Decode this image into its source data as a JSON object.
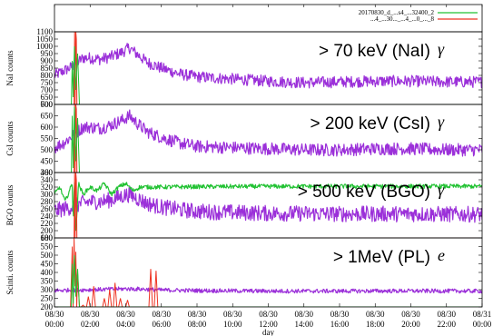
{
  "chart_data": {
    "type": "line",
    "xlabel": "day",
    "x_ticks": [
      {
        "hour": 0,
        "date": "08/30",
        "time": "00:00"
      },
      {
        "hour": 2,
        "date": "08/30",
        "time": "02:00"
      },
      {
        "hour": 4,
        "date": "08/30",
        "time": "04:00"
      },
      {
        "hour": 6,
        "date": "08/30",
        "time": "06:00"
      },
      {
        "hour": 8,
        "date": "08/30",
        "time": "08:00"
      },
      {
        "hour": 10,
        "date": "08/30",
        "time": "10:00"
      },
      {
        "hour": 12,
        "date": "08/30",
        "time": "12:00"
      },
      {
        "hour": 14,
        "date": "08/30",
        "time": "14:00"
      },
      {
        "hour": 16,
        "date": "08/30",
        "time": "16:00"
      },
      {
        "hour": 18,
        "date": "08/30",
        "time": "18:00"
      },
      {
        "hour": 20,
        "date": "08/30",
        "time": "20:00"
      },
      {
        "hour": 22,
        "date": "08/30",
        "time": "22:00"
      },
      {
        "hour": 24,
        "date": "08/31",
        "time": "00:00"
      }
    ],
    "xlim": [
      0,
      24
    ],
    "legend": {
      "placement": "top-right",
      "entries": [
        "20170830_d_...s4_...32400_2",
        "...4_...30..._...4_...0_..._8"
      ]
    },
    "panels": [
      {
        "ylabel": "NaI counts",
        "energy_label": "> 70 keV (NaI)",
        "particle": "γ",
        "ylim": [
          600,
          1100
        ],
        "yticks": [
          600,
          650,
          700,
          750,
          800,
          850,
          900,
          950,
          1000,
          1050,
          1100
        ],
        "series": [
          {
            "color": "#9b30d9",
            "noise": 40,
            "x": [
              0,
              0.5,
              1.0,
              1.3,
              1.6,
              2.0,
              2.6,
              3.2,
              3.8,
              4.2,
              4.6,
              5.2,
              6.0,
              7.0,
              8.0,
              10.0,
              12.0,
              14.0,
              16.0,
              18.0,
              20.0,
              22.0,
              24.0
            ],
            "y": [
              800,
              830,
              860,
              890,
              920,
              920,
              910,
              930,
              960,
              990,
              950,
              890,
              850,
              810,
              790,
              775,
              760,
              750,
              755,
              760,
              760,
              755,
              755
            ]
          },
          {
            "color": "#ee3322",
            "noise": 0,
            "x": [
              0,
              1.1,
              1.13,
              1.16,
              1.2,
              1.23,
              1.26,
              1.3,
              24.0
            ],
            "y": [
              600,
              600,
              1100,
              600,
              1100,
              1050,
              600,
              600,
              600
            ]
          },
          {
            "color": "#22c233",
            "noise": 0,
            "x": [
              0,
              0.95,
              1.0,
              1.05,
              1.12,
              1.2,
              1.3,
              1.4,
              24.0
            ],
            "y": [
              600,
              600,
              900,
              650,
              1000,
              700,
              950,
              600,
              600
            ]
          }
        ]
      },
      {
        "ylabel": "CsI counts",
        "energy_label": "> 200 keV (CsI)",
        "particle": "γ",
        "ylim": [
          400,
          700
        ],
        "yticks": [
          400,
          450,
          500,
          550,
          600,
          650,
          700
        ],
        "series": [
          {
            "color": "#9b30d9",
            "noise": 28,
            "x": [
              0,
              0.5,
              1.0,
              1.3,
              1.6,
              2.0,
              2.6,
              3.2,
              3.8,
              4.2,
              4.6,
              5.2,
              6.0,
              7.0,
              8.0,
              10.0,
              12.0,
              14.0,
              16.0,
              18.0,
              20.0,
              22.0,
              24.0
            ],
            "y": [
              510,
              530,
              560,
              580,
              600,
              600,
              595,
              610,
              630,
              650,
              620,
              580,
              555,
              530,
              515,
              510,
              505,
              500,
              500,
              505,
              505,
              500,
              500
            ]
          },
          {
            "color": "#ee3322",
            "noise": 0,
            "x": [
              0,
              1.1,
              1.13,
              1.16,
              1.2,
              1.23,
              1.26,
              1.3,
              24.0
            ],
            "y": [
              400,
              400,
              700,
              400,
              700,
              680,
              400,
              400,
              400
            ]
          },
          {
            "color": "#22c233",
            "noise": 0,
            "x": [
              0,
              0.95,
              1.0,
              1.05,
              1.12,
              1.2,
              1.3,
              1.4,
              24.0
            ],
            "y": [
              400,
              400,
              650,
              420,
              690,
              450,
              640,
              400,
              400
            ]
          }
        ]
      },
      {
        "ylabel": "BGO counts",
        "energy_label": "> 500 keV (BGO)",
        "particle": "γ",
        "ylim": [
          180,
          360
        ],
        "yticks": [
          180,
          200,
          220,
          240,
          260,
          280,
          300,
          320,
          340,
          360
        ],
        "series": [
          {
            "color": "#9b30d9",
            "noise": 22,
            "x": [
              0,
              0.5,
              1.0,
              1.5,
              2.0,
              2.6,
              3.2,
              3.8,
              4.2,
              4.6,
              5.2,
              6.0,
              7.0,
              8.0,
              10.0,
              12.0,
              14.0,
              16.0,
              18.0,
              20.0,
              22.0,
              24.0
            ],
            "y": [
              255,
              260,
              265,
              275,
              280,
              280,
              285,
              295,
              300,
              290,
              275,
              265,
              258,
              253,
              250,
              248,
              247,
              246,
              246,
              246,
              245,
              245
            ]
          },
          {
            "color": "#22c233",
            "noise": 6,
            "x": [
              0,
              0.3,
              0.6,
              1.0,
              1.05,
              1.12,
              1.2,
              1.35,
              1.6,
              2.0,
              2.4,
              2.8,
              3.2,
              3.6,
              4.0,
              4.4,
              4.8,
              5.2,
              6.0,
              8.0,
              12.0,
              16.0,
              20.0,
              24.0
            ],
            "y": [
              300,
              320,
              280,
              330,
              220,
              350,
              200,
              330,
              300,
              320,
              310,
              330,
              300,
              320,
              330,
              310,
              320,
              320,
              320,
              321,
              322,
              322,
              322,
              322
            ]
          },
          {
            "color": "#ee3322",
            "noise": 0,
            "x": [
              0,
              1.1,
              1.13,
              1.16,
              1.2,
              1.23,
              1.26,
              1.3,
              24.0
            ],
            "y": [
              180,
              180,
              360,
              180,
              360,
              340,
              180,
              180,
              180
            ]
          }
        ]
      },
      {
        "ylabel": "Scinti. counts",
        "energy_label": "> 1MeV (PL)",
        "particle": "e",
        "ylim": [
          200,
          600
        ],
        "yticks": [
          200,
          250,
          300,
          350,
          400,
          450,
          500,
          550,
          600
        ],
        "series": [
          {
            "color": "#9b30d9",
            "noise": 12,
            "x": [
              0,
              1.0,
              2.0,
              3.0,
              4.0,
              5.0,
              6.0,
              8.0,
              12.0,
              16.0,
              20.0,
              24.0
            ],
            "y": [
              295,
              298,
              300,
              302,
              305,
              303,
              298,
              295,
              292,
              292,
              293,
              292
            ]
          },
          {
            "color": "#ee3322",
            "noise": 0,
            "x": [
              0,
              0.9,
              1.0,
              1.05,
              1.1,
              1.15,
              1.2,
              1.25,
              1.3,
              1.4,
              1.5,
              1.6,
              1.7,
              1.8,
              1.9,
              2.0,
              2.1,
              2.2,
              2.3,
              2.4,
              2.5,
              2.6,
              2.7,
              2.8,
              2.9,
              3.0,
              3.1,
              3.2,
              3.3,
              3.4,
              3.5,
              3.6,
              3.7,
              3.8,
              3.9,
              4.0,
              4.1,
              4.2,
              4.3,
              4.4,
              4.5,
              4.6,
              4.7,
              4.8,
              4.9,
              5.0,
              5.1,
              5.2,
              5.3,
              5.4,
              5.5,
              5.6,
              5.7,
              5.8,
              5.9,
              6.0,
              24.0
            ],
            "y": [
              200,
              200,
              550,
              200,
              600,
              320,
              520,
              200,
              400,
              200,
              200,
              210,
              200,
              200,
              260,
              200,
              200,
              320,
              200,
              200,
              200,
              200,
              200,
              250,
              200,
              200,
              300,
              200,
              200,
              340,
              200,
              200,
              250,
              200,
              200,
              200,
              240,
              200,
              200,
              200,
              200,
              200,
              200,
              200,
              200,
              200,
              200,
              200,
              200,
              420,
              200,
              200,
              410,
              200,
              200,
              200,
              200
            ]
          },
          {
            "color": "#22c233",
            "noise": 0,
            "x": [
              0,
              0.95,
              1.0,
              1.05,
              1.12,
              1.2,
              1.3,
              1.4,
              24.0
            ],
            "y": [
              200,
              200,
              450,
              220,
              500,
              260,
              420,
              200,
              200
            ]
          }
        ]
      }
    ]
  }
}
